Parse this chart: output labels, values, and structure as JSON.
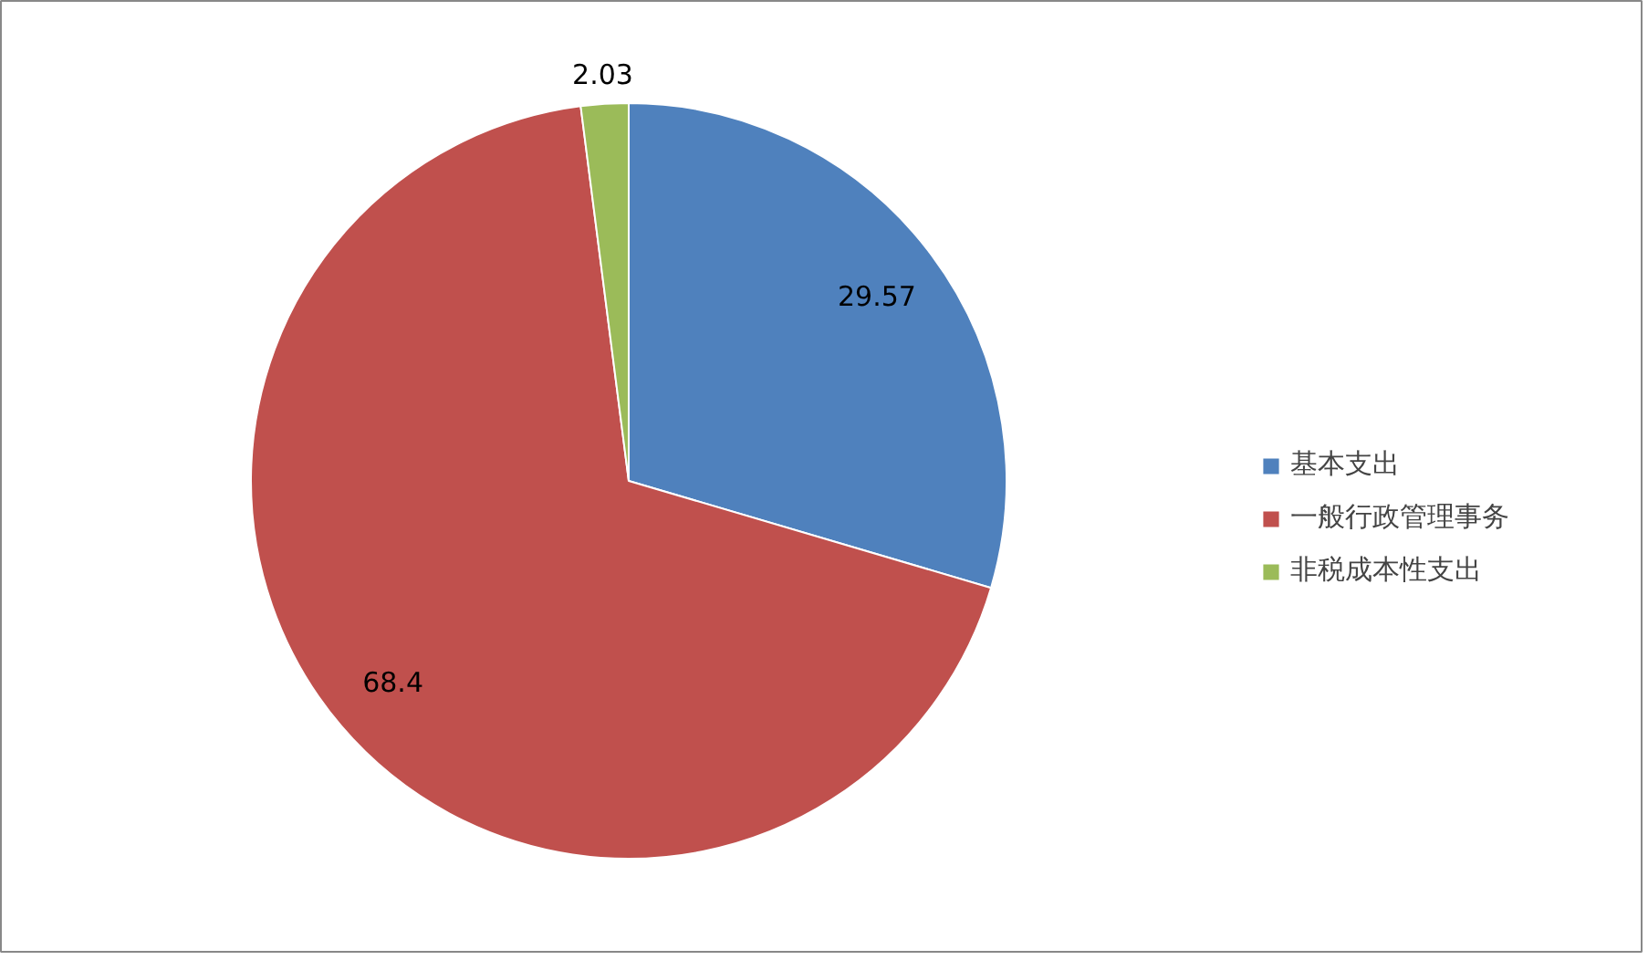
{
  "chart_data": {
    "type": "pie",
    "categories": [
      "基本支出",
      "一般行政管理事务",
      "非税成本性支出"
    ],
    "values": [
      29.57,
      68.4,
      2.03
    ],
    "colors": [
      "#4f81bd",
      "#c0504d",
      "#9bbb59"
    ],
    "data_labels": true,
    "legend": "right"
  }
}
